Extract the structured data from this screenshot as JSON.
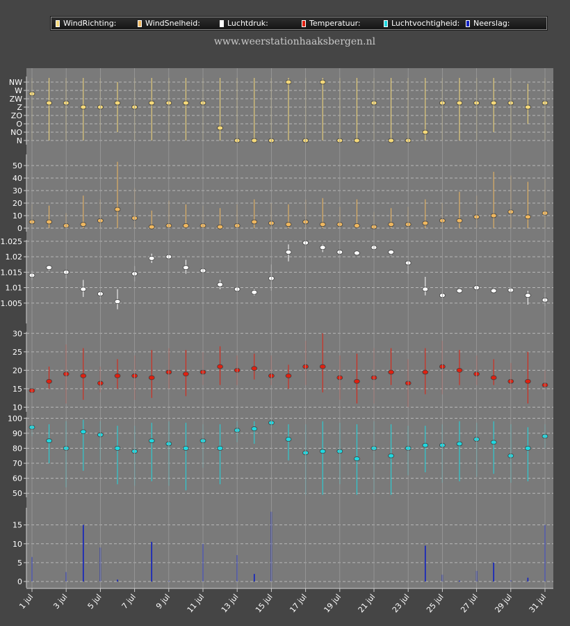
{
  "legend": {
    "wind_direction": "WindRichting:",
    "wind_speed": "WindSnelheid:",
    "pressure": "Luchtdruk:",
    "temperature": "Temperatuur:",
    "humidity": "Luchtvochtigheid:",
    "precipitation": "Neerslag:"
  },
  "site_title": "www.weerstationhaaksbergen.nl",
  "colors": {
    "wind_direction": "#f5d97a",
    "wind_speed": "#f0b860",
    "pressure": "#ffffff",
    "temperature": "#e02010",
    "humidity": "#20d8e0",
    "precipitation": "#1020c0"
  },
  "chart_data": {
    "type": "multi-panel",
    "x_ticks": [
      "1 jul",
      "3 jul",
      "5 jul",
      "7 jul",
      "9 jul",
      "11 jul",
      "13 jul",
      "15 jul",
      "17 jul",
      "19 jul",
      "21 jul",
      "23 jul",
      "25 jul",
      "27 jul",
      "29 jul",
      "31 jul"
    ],
    "panels": [
      {
        "id": "wind_direction",
        "type": "range-point",
        "y_labels": [
          "N",
          "NO",
          "O",
          "ZO",
          "Z",
          "ZW",
          "W",
          "NW"
        ],
        "ylim": [
          0,
          7
        ],
        "values": [
          5.6,
          4.5,
          4.5,
          4,
          4,
          4.5,
          4,
          4.5,
          4.5,
          4.5,
          4.5,
          1.5,
          0,
          0,
          0,
          7,
          0,
          7,
          0,
          0,
          4.5,
          0,
          0,
          1,
          4.5,
          4.5,
          4.5,
          4.5,
          4.5,
          4,
          4.5
        ],
        "low": [
          0,
          0,
          0,
          0,
          1,
          1,
          0,
          0,
          0,
          0,
          0,
          0,
          0,
          0,
          0,
          0,
          0,
          0,
          0,
          0,
          0,
          0,
          0,
          0,
          0,
          0,
          0,
          1,
          0,
          2,
          0
        ],
        "high": [
          7.5,
          7.5,
          7.5,
          7.5,
          7.5,
          7,
          7.5,
          7.5,
          7.5,
          7.5,
          7.5,
          7.5,
          7.5,
          7.5,
          7.5,
          7.5,
          7.5,
          7.5,
          7.5,
          7.5,
          7.5,
          7.5,
          7.5,
          7.5,
          7.5,
          7.5,
          7.5,
          7.5,
          7.5,
          6.8,
          7.5
        ]
      },
      {
        "id": "wind_speed",
        "type": "range-point",
        "y_ticks": [
          0,
          10,
          20,
          30,
          40,
          50
        ],
        "ylim": [
          0,
          50
        ],
        "values": [
          5,
          5,
          2,
          3,
          6,
          15,
          8,
          1,
          2,
          2,
          2,
          1,
          2,
          5,
          4,
          3,
          5,
          3,
          3,
          2,
          1,
          3,
          3,
          4,
          6,
          6,
          9,
          10,
          13,
          9,
          12
        ],
        "low": [
          0,
          0,
          0,
          0,
          0,
          0,
          0,
          0,
          0,
          0,
          0,
          0,
          0,
          0,
          0,
          0,
          0,
          0,
          0,
          0,
          0,
          0,
          0,
          0,
          0,
          0,
          0,
          0,
          0,
          0,
          0
        ],
        "high": [
          19,
          18,
          12,
          26,
          23,
          53,
          32,
          14,
          22,
          19,
          18,
          16,
          19,
          23,
          20,
          19,
          23,
          24,
          17,
          23,
          13,
          16,
          17,
          23,
          20,
          29,
          26,
          45,
          42,
          37,
          39
        ]
      },
      {
        "id": "pressure",
        "type": "range-point",
        "y_ticks": [
          1.005,
          1.01,
          1.015,
          1.02,
          1.025
        ],
        "ylim": [
          1.0,
          1.027
        ],
        "values": [
          1.014,
          1.0165,
          1.015,
          1.0095,
          1.008,
          1.0055,
          1.0145,
          1.0195,
          1.02,
          1.0165,
          1.0155,
          1.011,
          1.0095,
          1.0085,
          1.013,
          1.0215,
          1.0245,
          1.023,
          1.0215,
          1.0212,
          1.023,
          1.0215,
          1.018,
          1.0095,
          1.0075,
          1.009,
          1.01,
          1.009,
          1.0092,
          1.0075,
          1.006
        ],
        "low": [
          1.0125,
          1.0155,
          1.013,
          1.007,
          1.0065,
          1.003,
          1.012,
          1.018,
          1.0195,
          1.0145,
          1.0145,
          1.0095,
          1.009,
          1.0075,
          1.009,
          1.0185,
          1.024,
          1.0215,
          1.021,
          1.0207,
          1.0225,
          1.0205,
          1.0145,
          1.0075,
          1.0065,
          1.0085,
          1.0095,
          1.0085,
          1.0087,
          1.0045,
          1.004
        ],
        "high": [
          1.0155,
          1.017,
          1.0155,
          1.0125,
          1.009,
          1.0095,
          1.017,
          1.021,
          1.0205,
          1.019,
          1.016,
          1.0125,
          1.0105,
          1.0095,
          1.0175,
          1.024,
          1.025,
          1.024,
          1.022,
          1.0217,
          1.0235,
          1.0222,
          1.0185,
          1.0135,
          1.0085,
          1.0095,
          1.0105,
          1.0098,
          1.0098,
          1.009,
          1.0085
        ]
      },
      {
        "id": "temperature",
        "type": "range-point",
        "y_ticks": [
          10,
          15,
          20,
          25,
          30
        ],
        "ylim": [
          8,
          31
        ],
        "values": [
          14.5,
          17,
          19,
          18.5,
          16.5,
          18.5,
          18.5,
          18,
          19.5,
          19,
          19.5,
          21,
          20,
          20.5,
          18.5,
          18.5,
          21,
          21,
          18,
          17,
          18,
          19.5,
          16.5,
          19.5,
          21,
          20,
          19,
          18,
          17,
          17,
          16
        ],
        "low": [
          13.5,
          15,
          11,
          12,
          14,
          15,
          12,
          12.5,
          15,
          13,
          16,
          16,
          16,
          17.5,
          16,
          15,
          16,
          14,
          12,
          11,
          11,
          16,
          10,
          13.5,
          13.5,
          16,
          16,
          16,
          15,
          11,
          15
        ],
        "high": [
          15,
          21,
          27,
          26,
          21,
          23,
          24,
          25.5,
          26,
          25.5,
          25,
          26.5,
          24,
          24.5,
          24,
          21.5,
          28,
          30,
          24,
          24.5,
          26,
          26,
          23,
          26,
          28,
          25.5,
          24,
          23,
          22,
          25,
          20
        ]
      },
      {
        "id": "humidity",
        "type": "range-point",
        "y_ticks": [
          50,
          60,
          70,
          80,
          90,
          100
        ],
        "ylim": [
          45,
          102
        ],
        "values": [
          94,
          85,
          80,
          91,
          89,
          80,
          78,
          85,
          83,
          80,
          85,
          80,
          92,
          93,
          97,
          86,
          77,
          78,
          78,
          73,
          80,
          75,
          80,
          82,
          82,
          83,
          86,
          84,
          75,
          80,
          88
        ],
        "low": [
          88,
          70,
          54,
          65,
          72,
          56,
          55,
          58,
          55,
          52,
          67,
          56,
          84,
          83,
          94,
          72,
          49,
          49,
          56,
          49,
          50,
          49,
          62,
          64,
          57,
          58,
          61,
          63,
          57,
          58,
          80
        ],
        "high": [
          96,
          96,
          98,
          99,
          98,
          95,
          95,
          97,
          98,
          97,
          96,
          96,
          98,
          98,
          99,
          96,
          96,
          98,
          97,
          96,
          98,
          96,
          95,
          95,
          96,
          98,
          97,
          98,
          96,
          94,
          96
        ]
      },
      {
        "id": "precipitation",
        "type": "bar",
        "y_ticks": [
          0,
          5,
          10,
          15
        ],
        "ylim": [
          0,
          19
        ],
        "values": [
          6.5,
          0,
          2.5,
          15,
          9,
          0.5,
          0,
          10.5,
          0.2,
          0,
          10,
          0,
          7,
          2,
          18.5,
          0,
          0,
          0,
          0,
          0,
          0,
          0,
          0,
          9.5,
          1.8,
          0.2,
          2.8,
          5,
          0.3,
          1,
          15
        ]
      }
    ]
  }
}
